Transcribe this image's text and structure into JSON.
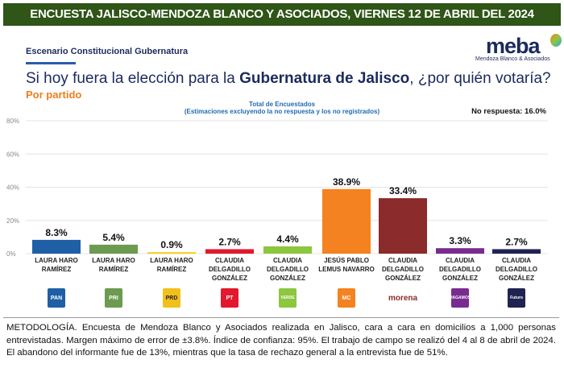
{
  "header": {
    "title": "ENCUESTA JALISCO-MENDOZA BLANCO Y ASOCIADOS, VIERNES 12 DE ABRIL DEL 2024"
  },
  "scenario": "Escenario Constitucional Gubernatura",
  "question": {
    "pre": "Si hoy fuera la elección para la ",
    "bold": "Gubernatura de Jalisco",
    "post": ", ¿por quién votaría?"
  },
  "subtitle": "Por partido",
  "logo": {
    "name": "meba",
    "tagline": "Mendoza Blanco & Asociados"
  },
  "no_response": "No respuesta: 16.0%",
  "chart_data": {
    "type": "bar",
    "title": "Total de Encuestados",
    "subtitle": "(Estimaciones excluyendo la no respuesta y los no registrados)",
    "ylim": [
      0,
      80
    ],
    "yticks": [
      "0%",
      "20%",
      "40%",
      "60%",
      "80%"
    ],
    "categories": [
      "LAURA HARO RAMÍREZ",
      "LAURA HARO RAMÍREZ",
      "LAURA HARO RAMÍREZ",
      "CLAUDIA DELGADILLO GONZÁLEZ",
      "CLAUDIA DELGADILLO GONZÁLEZ",
      "JESÚS PABLO LEMUS NAVARRO",
      "CLAUDIA DELGADILLO GONZÁLEZ",
      "CLAUDIA DELGADILLO GONZÁLEZ",
      "CLAUDIA DELGADILLO GONZÁLEZ"
    ],
    "parties": [
      "PAN",
      "PRI",
      "PRD",
      "PT",
      "VERDE",
      "MC",
      "morena",
      "HAGAMOS",
      "Futuro"
    ],
    "values": [
      8.3,
      5.4,
      0.9,
      2.7,
      4.4,
      38.9,
      33.4,
      3.3,
      2.7
    ],
    "labels": [
      "8.3%",
      "5.4%",
      "0.9%",
      "2.7%",
      "4.4%",
      "38.9%",
      "33.4%",
      "3.3%",
      "2.7%"
    ],
    "colors": [
      "#1f5fa6",
      "#6c9a4f",
      "#f2d21b",
      "#e3182d",
      "#8dc63f",
      "#f58220",
      "#8b2b2b",
      "#7a2b8f",
      "#1f2352"
    ]
  },
  "methodology": "METODOLOGÍA. Encuesta de Mendoza Blanco y Asociados realizada en Jalisco, cara a cara en domicilios a 1,000 personas entrevistadas. Margen máximo de error de ±3.8%. Índice de confianza: 95%. El trabajo de campo se realizó del 4 al 8 de abril de 2024. El abandono del informante fue de 13%, mientras que la tasa de rechazo general a la entrevista fue de 51%."
}
